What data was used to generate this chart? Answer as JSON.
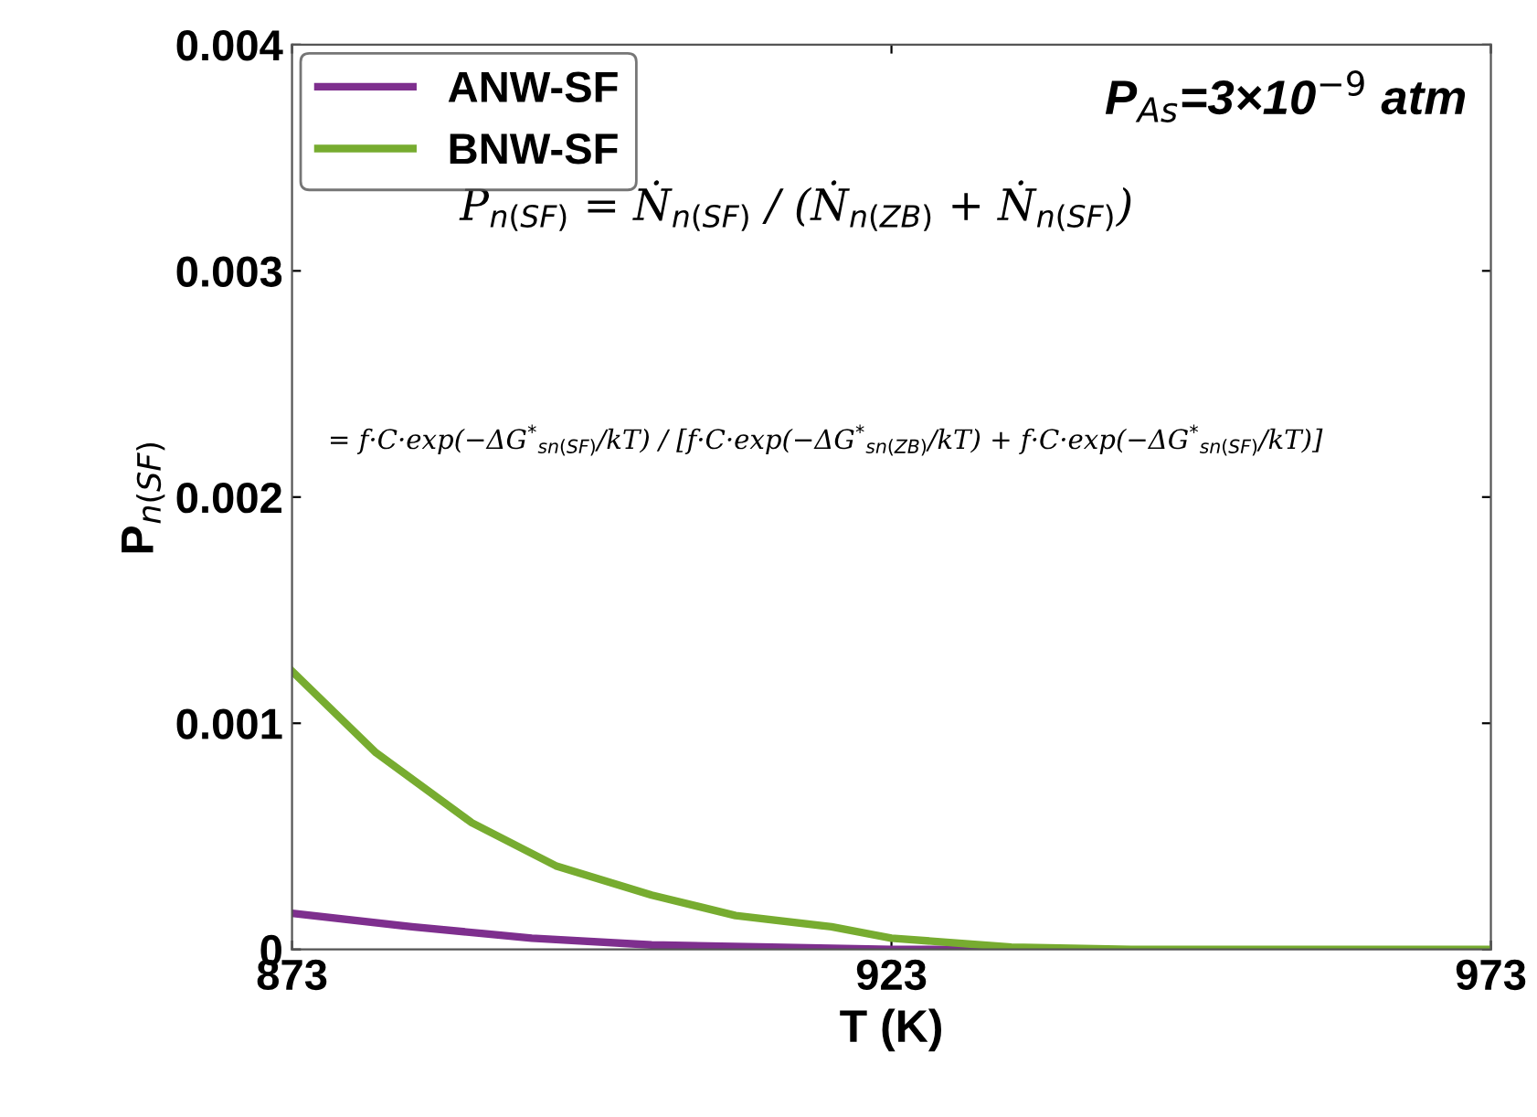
{
  "chart_data": {
    "type": "line",
    "xlabel": "T (K)",
    "ylabel": "P$_{n(SF)}$",
    "xlim": [
      873,
      973
    ],
    "ylim": [
      0,
      0.004
    ],
    "xticks": [
      873,
      923,
      973
    ],
    "yticks": [
      0,
      0.001,
      0.002,
      0.003,
      0.004
    ],
    "grid": false,
    "legend": "top left",
    "marker": "none",
    "line_style": "solid",
    "series": [
      {
        "name": "ANW-SF",
        "color": "#7e2f8e",
        "x": [
          873,
          883,
          893,
          903,
          913,
          923,
          933
        ],
        "values": [
          0.00016,
          0.0001,
          5e-05,
          2e-05,
          1e-05,
          0.0,
          0.0
        ]
      },
      {
        "name": "BNW-SF",
        "color": "#77ac30",
        "x": [
          873,
          880,
          888,
          895,
          903,
          910,
          918,
          923,
          933,
          943,
          953,
          963,
          973
        ],
        "values": [
          0.00123,
          0.00087,
          0.00056,
          0.00037,
          0.00024,
          0.00015,
          0.0001,
          5e-05,
          1e-05,
          0.0,
          0.0,
          0.0,
          0.0
        ]
      }
    ],
    "annotations": [
      "P$_{As}$=3×10$^{−9}$ atm",
      "P$_{n(SF)}$ = Ṅ$_{n(SF)}$ / (Ṅ$_{n(ZB)}$ + Ṅ$_{n(SF)}$)",
      "= f·C·exp(−ΔG$^{*}$$_{sn(SF)}$/kT) / [f·C·exp(−ΔG$^{*}$$_{sn(ZB)}$/kT) + f·C·exp(−ΔG$^{*}$$_{sn(SF)}$/kT)]"
    ]
  }
}
